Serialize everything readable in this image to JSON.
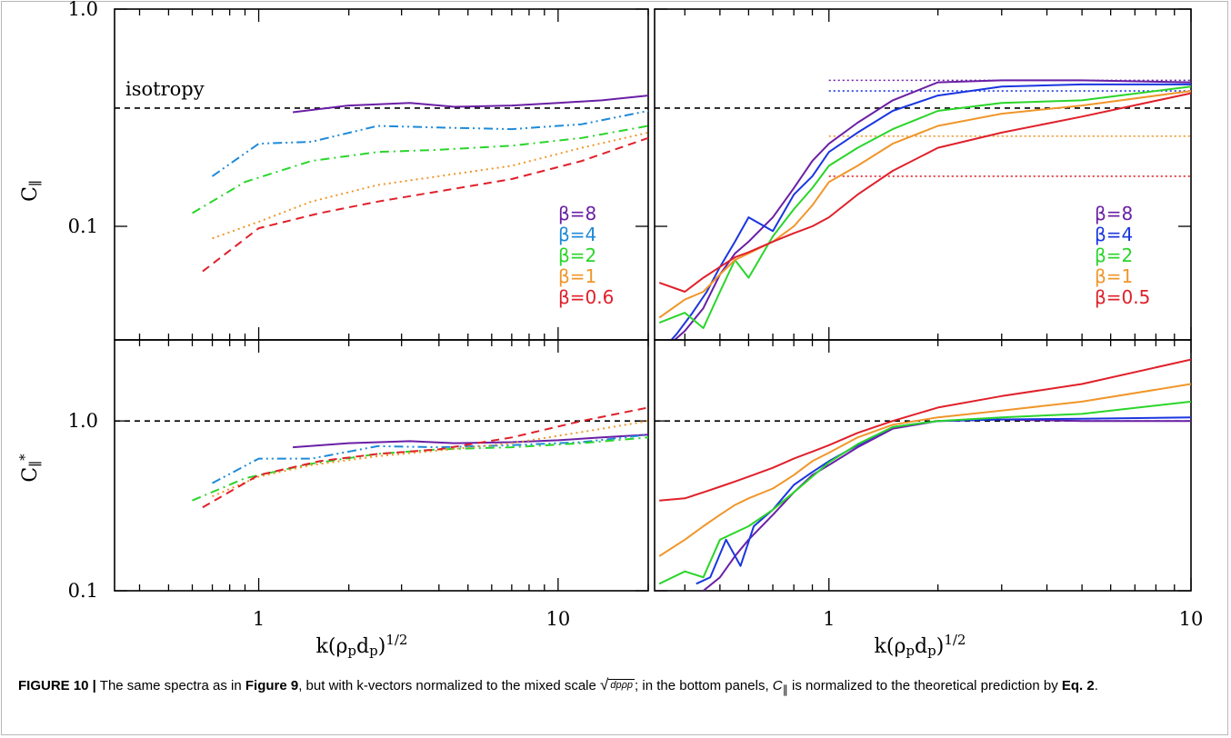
{
  "caption": {
    "label": "FIGURE 10 |",
    "t1": " The same spectra as in ",
    "ref1": "Figure 9",
    "t2": ", but with k-vectors normalized to the mixed scale ",
    "sqrt_arg": "dpρp",
    "t3": "; in the bottom panels, ",
    "sym": "C",
    "sym_sub": "∥",
    "t4": " is normalized to the theoretical prediction by ",
    "ref2": "Eq. 2",
    "t5": "."
  },
  "chart_data": [
    {
      "id": "top_left",
      "type": "line",
      "ylabel": "C∥",
      "xscale": "log",
      "yscale": "log",
      "xlim": [
        0.33,
        20
      ],
      "ylim": [
        0.03,
        1.0
      ],
      "yticks": [
        0.1,
        1.0
      ],
      "ytick_labels": [
        "0.1",
        "1.0"
      ],
      "xticks": [
        1,
        10
      ],
      "xtick_labels": [],
      "reference_line": {
        "y": 0.35,
        "style": "dashed",
        "label": "isotropy"
      },
      "series": [
        {
          "name": "β=8",
          "color": "#6a1fa5",
          "style": "solid",
          "x": [
            1.3,
            2.0,
            3.2,
            4.5,
            7.0,
            10,
            14,
            20
          ],
          "y": [
            0.335,
            0.36,
            0.37,
            0.355,
            0.36,
            0.37,
            0.38,
            0.4
          ]
        },
        {
          "name": "β=4",
          "color": "#1f8ad8",
          "style": "dashdotdotted",
          "x": [
            0.7,
            1.0,
            1.5,
            2.5,
            4.0,
            7.0,
            12,
            20
          ],
          "y": [
            0.17,
            0.24,
            0.245,
            0.29,
            0.285,
            0.28,
            0.295,
            0.34
          ]
        },
        {
          "name": "β=2",
          "color": "#2ad52a",
          "style": "dashdot",
          "x": [
            0.6,
            0.9,
            1.5,
            2.5,
            4.0,
            7.0,
            12,
            20
          ],
          "y": [
            0.115,
            0.16,
            0.2,
            0.22,
            0.225,
            0.235,
            0.255,
            0.29
          ]
        },
        {
          "name": "β=1",
          "color": "#f0962a",
          "style": "dotted",
          "x": [
            0.7,
            1.0,
            1.5,
            2.5,
            4.0,
            7.0,
            12,
            20
          ],
          "y": [
            0.088,
            0.105,
            0.13,
            0.155,
            0.17,
            0.19,
            0.23,
            0.27
          ]
        },
        {
          "name": "β=0.6",
          "color": "#e0202a",
          "style": "dashed",
          "x": [
            0.65,
            1.0,
            1.6,
            2.5,
            4.0,
            7.0,
            12,
            20
          ],
          "y": [
            0.062,
            0.098,
            0.115,
            0.13,
            0.145,
            0.165,
            0.2,
            0.255
          ]
        }
      ]
    },
    {
      "id": "top_right",
      "type": "line",
      "xscale": "log",
      "yscale": "log",
      "xlim": [
        0.33,
        10
      ],
      "ylim": [
        0.03,
        1.0
      ],
      "reference_line": {
        "y": 0.35,
        "style": "dashed"
      },
      "series": [
        {
          "name": "β=8",
          "color": "#6a1fa5",
          "style": "solid",
          "x": [
            0.34,
            0.4,
            0.45,
            0.5,
            0.55,
            0.6,
            0.7,
            0.8,
            0.9,
            1.0,
            1.2,
            1.5,
            2.0,
            3.0,
            5.0,
            10
          ],
          "y": [
            0.026,
            0.033,
            0.042,
            0.06,
            0.075,
            0.085,
            0.11,
            0.15,
            0.2,
            0.24,
            0.3,
            0.38,
            0.46,
            0.47,
            0.47,
            0.46
          ]
        },
        {
          "name": "β=4",
          "color": "#1a36e0",
          "style": "solid",
          "x": [
            0.34,
            0.38,
            0.42,
            0.46,
            0.5,
            0.55,
            0.6,
            0.7,
            0.8,
            0.9,
            1.0,
            1.2,
            1.5,
            2.0,
            3.0,
            5.0,
            10
          ],
          "y": [
            0.026,
            0.032,
            0.04,
            0.05,
            0.065,
            0.085,
            0.11,
            0.095,
            0.14,
            0.17,
            0.22,
            0.27,
            0.34,
            0.4,
            0.44,
            0.45,
            0.45
          ]
        },
        {
          "name": "β=2",
          "color": "#2ad52a",
          "style": "solid",
          "x": [
            0.34,
            0.4,
            0.45,
            0.5,
            0.55,
            0.6,
            0.7,
            0.8,
            0.9,
            1.0,
            1.2,
            1.5,
            2.0,
            3.0,
            5.0,
            10
          ],
          "y": [
            0.036,
            0.04,
            0.034,
            0.05,
            0.07,
            0.058,
            0.09,
            0.12,
            0.15,
            0.19,
            0.23,
            0.28,
            0.34,
            0.37,
            0.38,
            0.44
          ]
        },
        {
          "name": "β=1",
          "color": "#f0962a",
          "style": "solid",
          "x": [
            0.34,
            0.4,
            0.45,
            0.5,
            0.55,
            0.6,
            0.7,
            0.8,
            0.9,
            1.0,
            1.2,
            1.5,
            2.0,
            3.0,
            5.0,
            10
          ],
          "y": [
            0.038,
            0.046,
            0.05,
            0.06,
            0.07,
            0.075,
            0.085,
            0.1,
            0.125,
            0.16,
            0.19,
            0.24,
            0.29,
            0.33,
            0.36,
            0.42
          ]
        },
        {
          "name": "β=0.5",
          "color": "#e0202a",
          "style": "solid",
          "x": [
            0.34,
            0.4,
            0.45,
            0.5,
            0.55,
            0.6,
            0.7,
            0.8,
            0.9,
            1.0,
            1.2,
            1.5,
            2.0,
            3.0,
            5.0,
            10
          ],
          "y": [
            0.055,
            0.05,
            0.058,
            0.065,
            0.072,
            0.076,
            0.085,
            0.093,
            0.1,
            0.11,
            0.14,
            0.18,
            0.23,
            0.27,
            0.32,
            0.41
          ]
        }
      ],
      "prediction_lines": [
        {
          "color": "#6a1fa5",
          "y": 0.47,
          "x": [
            1.0,
            10
          ]
        },
        {
          "color": "#1a36e0",
          "y": 0.42,
          "x": [
            1.0,
            10
          ]
        },
        {
          "color": "#f0962a",
          "y": 0.26,
          "x": [
            1.0,
            10
          ]
        },
        {
          "color": "#e0202a",
          "y": 0.17,
          "x": [
            1.0,
            10
          ]
        }
      ]
    },
    {
      "id": "bottom_left",
      "type": "line",
      "ylabel": "C∥*",
      "xlabel": "k(ρpdp)1/2",
      "xscale": "log",
      "yscale": "log",
      "xlim": [
        0.33,
        20
      ],
      "ylim": [
        0.1,
        3.0
      ],
      "yticks": [
        0.1,
        1.0
      ],
      "ytick_labels": [
        "0.1",
        "1.0"
      ],
      "xticks": [
        1,
        10
      ],
      "xtick_labels": [
        "1",
        "10"
      ],
      "reference_line": {
        "y": 1.0,
        "style": "dashed"
      },
      "series": [
        {
          "name": "β=8",
          "color": "#6a1fa5",
          "style": "solid",
          "x": [
            1.3,
            2.0,
            3.2,
            4.5,
            7.0,
            10,
            14,
            20
          ],
          "y": [
            0.7,
            0.74,
            0.76,
            0.74,
            0.75,
            0.77,
            0.8,
            0.83
          ]
        },
        {
          "name": "β=4",
          "color": "#1f8ad8",
          "style": "dashdotdotted",
          "x": [
            0.7,
            1.0,
            1.5,
            2.5,
            4.0,
            7.0,
            12,
            20
          ],
          "y": [
            0.43,
            0.6,
            0.6,
            0.71,
            0.7,
            0.72,
            0.75,
            0.83
          ]
        },
        {
          "name": "β=2",
          "color": "#2ad52a",
          "style": "dashdot",
          "x": [
            0.6,
            0.9,
            1.5,
            2.5,
            4.0,
            7.0,
            12,
            20
          ],
          "y": [
            0.34,
            0.46,
            0.56,
            0.64,
            0.68,
            0.7,
            0.74,
            0.8
          ]
        },
        {
          "name": "β=1",
          "color": "#f0962a",
          "style": "dotted",
          "x": [
            0.7,
            1.0,
            1.5,
            2.5,
            4.0,
            7.0,
            12,
            20
          ],
          "y": [
            0.36,
            0.47,
            0.55,
            0.62,
            0.67,
            0.74,
            0.86,
            1.0
          ]
        },
        {
          "name": "β=0.6",
          "color": "#e0202a",
          "style": "dashed",
          "x": [
            0.65,
            1.0,
            1.6,
            2.5,
            4.0,
            7.0,
            12,
            20
          ],
          "y": [
            0.31,
            0.48,
            0.58,
            0.64,
            0.68,
            0.8,
            1.0,
            1.2
          ]
        }
      ]
    },
    {
      "id": "bottom_right",
      "type": "line",
      "xlabel": "k(ρpdp)1/2",
      "xscale": "log",
      "yscale": "log",
      "xlim": [
        0.33,
        10
      ],
      "ylim": [
        0.1,
        3.0
      ],
      "xticks": [
        1,
        10
      ],
      "xtick_labels": [
        "1",
        "10"
      ],
      "reference_line": {
        "y": 1.0,
        "style": "dashed"
      },
      "series": [
        {
          "name": "β=8",
          "color": "#6a1fa5",
          "style": "solid",
          "x": [
            0.45,
            0.5,
            0.55,
            0.6,
            0.7,
            0.8,
            0.9,
            1.0,
            1.2,
            1.5,
            2.0,
            3.0,
            5.0,
            10
          ],
          "y": [
            0.1,
            0.12,
            0.16,
            0.2,
            0.28,
            0.38,
            0.48,
            0.55,
            0.7,
            0.9,
            1.0,
            1.02,
            1.0,
            1.0
          ]
        },
        {
          "name": "β=4",
          "color": "#1a36e0",
          "style": "solid",
          "x": [
            0.43,
            0.47,
            0.52,
            0.57,
            0.62,
            0.7,
            0.8,
            0.9,
            1.0,
            1.2,
            1.5,
            2.0,
            3.0,
            5.0,
            10
          ],
          "y": [
            0.11,
            0.12,
            0.2,
            0.14,
            0.24,
            0.3,
            0.42,
            0.5,
            0.58,
            0.72,
            0.92,
            1.0,
            1.02,
            1.03,
            1.05
          ]
        },
        {
          "name": "β=2",
          "color": "#2ad52a",
          "style": "solid",
          "x": [
            0.34,
            0.4,
            0.45,
            0.5,
            0.55,
            0.6,
            0.7,
            0.8,
            0.9,
            1.0,
            1.2,
            1.5,
            2.0,
            3.0,
            5.0,
            10
          ],
          "y": [
            0.11,
            0.13,
            0.12,
            0.2,
            0.22,
            0.24,
            0.3,
            0.38,
            0.47,
            0.57,
            0.73,
            0.92,
            1.0,
            1.05,
            1.1,
            1.3
          ]
        },
        {
          "name": "β=1",
          "color": "#f0962a",
          "style": "solid",
          "x": [
            0.34,
            0.4,
            0.45,
            0.5,
            0.55,
            0.6,
            0.7,
            0.8,
            0.9,
            1.0,
            1.2,
            1.5,
            2.0,
            3.0,
            5.0,
            10
          ],
          "y": [
            0.16,
            0.2,
            0.24,
            0.28,
            0.32,
            0.35,
            0.4,
            0.48,
            0.58,
            0.65,
            0.8,
            0.95,
            1.05,
            1.15,
            1.3,
            1.65
          ]
        },
        {
          "name": "β=0.5",
          "color": "#e0202a",
          "style": "solid",
          "x": [
            0.34,
            0.4,
            0.45,
            0.5,
            0.55,
            0.6,
            0.7,
            0.8,
            0.9,
            1.0,
            1.2,
            1.5,
            2.0,
            3.0,
            5.0,
            10
          ],
          "y": [
            0.34,
            0.35,
            0.38,
            0.41,
            0.44,
            0.47,
            0.53,
            0.6,
            0.66,
            0.72,
            0.85,
            1.0,
            1.2,
            1.4,
            1.65,
            2.3
          ]
        }
      ]
    }
  ]
}
